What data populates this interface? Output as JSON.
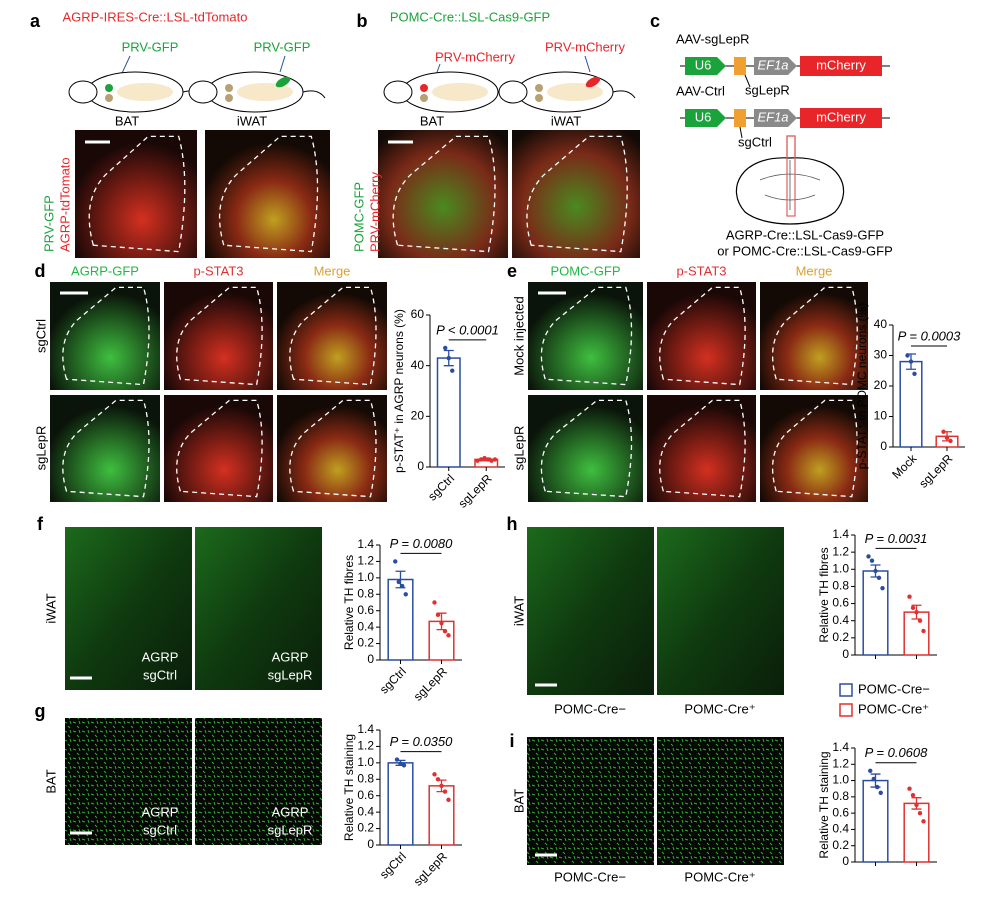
{
  "panel_letters": [
    "a",
    "b",
    "c",
    "d",
    "e",
    "f",
    "g",
    "h",
    "i"
  ],
  "panel_a": {
    "title": "AGRP-IRES-Cre::LSL-tdTomato",
    "tracers": [
      "PRV-GFP",
      "PRV-GFP"
    ],
    "tissues": [
      "BAT",
      "iWAT"
    ],
    "stains": [
      "PRV-GFP",
      "AGRP-tdTomato"
    ]
  },
  "panel_b": {
    "title": "POMC-Cre::LSL-Cas9-GFP",
    "tracers": [
      "PRV-mCherry",
      "PRV-mCherry"
    ],
    "tissues": [
      "BAT",
      "iWAT"
    ],
    "stains": [
      "POMC-GFP",
      "PRV-mCherry"
    ]
  },
  "panel_c": {
    "constructs": [
      {
        "name": "AAV-sgLepR",
        "promoter": "U6",
        "ef": "EF1a",
        "gene": "mCherry",
        "guide": "sgLepR"
      },
      {
        "name": "AAV-Ctrl",
        "promoter": "U6",
        "ef": "EF1a",
        "gene": "mCherry",
        "guide": "sgCtrl"
      }
    ],
    "mice": [
      "AGRP-Cre::LSL-Cas9-GFP",
      "or POMC-Cre::LSL-Cas9-GFP"
    ]
  },
  "panel_d": {
    "channels": [
      "AGRP-GFP",
      "p-STAT3",
      "Merge"
    ],
    "rows": [
      "sgCtrl",
      "sgLepR"
    ]
  },
  "panel_e": {
    "channels": [
      "POMC-GFP",
      "p-STAT3",
      "Merge"
    ],
    "rows": [
      "Mock injected",
      "sgLepR"
    ]
  },
  "panel_f": {
    "tissue": "iWAT",
    "images": [
      [
        "AGRP",
        "sgCtrl"
      ],
      [
        "AGRP",
        "sgLepR"
      ]
    ]
  },
  "panel_g": {
    "tissue": "BAT",
    "images": [
      [
        "AGRP",
        "sgCtrl"
      ],
      [
        "AGRP",
        "sgLepR"
      ]
    ]
  },
  "panel_h": {
    "tissue": "iWAT",
    "images": [
      "POMC-Cre−",
      "POMC-Cre⁺"
    ]
  },
  "panel_i": {
    "tissue": "BAT",
    "images": [
      "POMC-Cre−",
      "POMC-Cre⁺"
    ]
  },
  "legend": [
    {
      "name": "POMC-Cre−",
      "color": "#2b4da0"
    },
    {
      "name": "POMC-Cre⁺",
      "color": "#e03030"
    }
  ],
  "chart_data": [
    {
      "type": "bar",
      "annotation": "P < 0.0001",
      "ylabel": "p-STAT⁺ in AGRP neurons (%)",
      "categories": [
        "sgCtrl",
        "sgLepR"
      ],
      "values": [
        43,
        3
      ],
      "errors": [
        3,
        0.5
      ],
      "points": [
        [
          47,
          43,
          38
        ],
        [
          2.5,
          3,
          3.5,
          3,
          2.5,
          3
        ]
      ],
      "colors": [
        "#2b4da0",
        "#e03030"
      ],
      "ylim": [
        0,
        60
      ],
      "yticks": [
        0,
        20,
        40,
        60
      ]
    },
    {
      "type": "bar",
      "annotation": "P = 0.0003",
      "ylabel": "p-STAT⁺ in POMC neurons (%)",
      "categories": [
        "Mock",
        "sgLepR"
      ],
      "values": [
        28,
        3.5
      ],
      "errors": [
        2.5,
        1.5
      ],
      "points": [
        [
          30,
          28,
          24
        ],
        [
          5,
          3,
          2
        ]
      ],
      "colors": [
        "#2b4da0",
        "#e03030"
      ],
      "ylim": [
        0,
        40
      ],
      "yticks": [
        0,
        10,
        20,
        30,
        40
      ]
    },
    {
      "type": "bar",
      "annotation": "P = 0.0080",
      "ylabel": "Relative TH fibres",
      "categories": [
        "sgCtrl",
        "sgLepR"
      ],
      "values": [
        0.98,
        0.47
      ],
      "errors": [
        0.1,
        0.1
      ],
      "points": [
        [
          1.2,
          0.95,
          0.9,
          0.8
        ],
        [
          0.7,
          0.55,
          0.45,
          0.35,
          0.3
        ]
      ],
      "colors": [
        "#2b4da0",
        "#e03030"
      ],
      "ylim": [
        0,
        1.4
      ],
      "yticks": [
        0,
        0.2,
        0.4,
        0.6,
        0.8,
        {
          "value": 1,
          "label": "1.0"
        },
        1.2,
        1.4
      ]
    },
    {
      "type": "bar",
      "annotation": "P = 0.0350",
      "ylabel": "Relative TH staining",
      "categories": [
        "sgCtrl",
        "sgLepR"
      ],
      "values": [
        1.0,
        0.72
      ],
      "errors": [
        0.03,
        0.07
      ],
      "points": [
        [
          1.04,
          0.99,
          0.97
        ],
        [
          0.86,
          0.8,
          0.72,
          0.65,
          0.55
        ]
      ],
      "colors": [
        "#2b4da0",
        "#e03030"
      ],
      "ylim": [
        0,
        1.4
      ],
      "yticks": [
        0,
        0.2,
        0.4,
        0.6,
        0.8,
        {
          "value": 1,
          "label": "1.0"
        },
        1.2,
        1.4
      ]
    },
    {
      "type": "bar",
      "annotation": "P = 0.0031",
      "ylabel": "Relative TH fibres",
      "categories": [
        null,
        null
      ],
      "values": [
        0.98,
        0.5
      ],
      "errors": [
        0.07,
        0.08
      ],
      "points": [
        [
          1.15,
          1.1,
          0.98,
          0.9,
          0.78
        ],
        [
          0.68,
          0.55,
          0.5,
          0.4,
          0.28
        ]
      ],
      "colors": [
        "#2b4da0",
        "#e03030"
      ],
      "ylim": [
        0,
        1.4
      ],
      "yticks": [
        0,
        0.2,
        0.4,
        0.6,
        0.8,
        {
          "value": 1,
          "label": "1.0"
        },
        1.2,
        1.4
      ]
    },
    {
      "type": "bar",
      "annotation": "P = 0.0608",
      "ylabel": "Relative TH staining",
      "categories": [
        null,
        null
      ],
      "values": [
        1.0,
        0.72
      ],
      "errors": [
        0.08,
        0.07
      ],
      "points": [
        [
          1.12,
          1.02,
          0.92,
          0.85
        ],
        [
          0.9,
          0.82,
          0.7,
          0.6,
          0.5
        ]
      ],
      "colors": [
        "#2b4da0",
        "#e03030"
      ],
      "ylim": [
        0,
        1.4
      ],
      "yticks": [
        0,
        0.2,
        0.4,
        0.6,
        0.8,
        {
          "value": 1,
          "label": "1.0"
        },
        1.2,
        1.4
      ]
    }
  ]
}
